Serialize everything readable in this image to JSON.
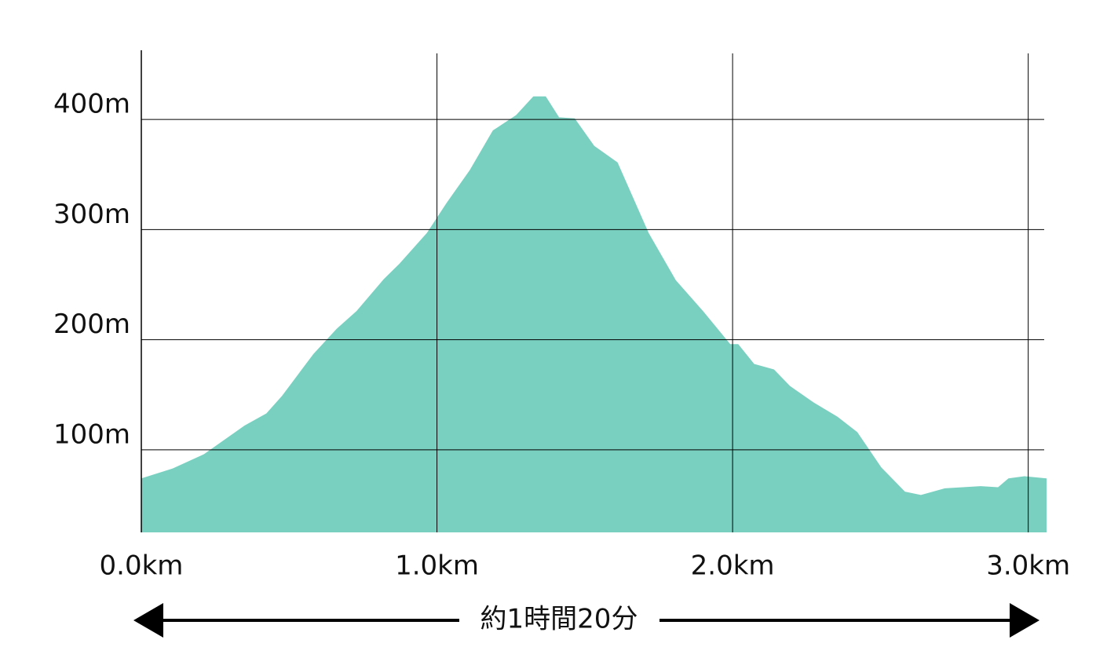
{
  "chart_data": {
    "type": "area",
    "x": [
      0,
      0.106,
      0.212,
      0.349,
      0.423,
      0.476,
      0.582,
      0.661,
      0.728,
      0.82,
      0.873,
      0.966,
      1.032,
      1.111,
      1.189,
      1.268,
      1.326,
      1.368,
      1.413,
      1.466,
      1.532,
      1.611,
      1.716,
      1.808,
      1.9,
      1.992,
      2.019,
      2.073,
      2.14,
      2.194,
      2.274,
      2.355,
      2.422,
      2.503,
      2.583,
      2.637,
      2.718,
      2.839,
      2.898,
      2.933,
      2.987,
      3.062
    ],
    "values": [
      74,
      83,
      96,
      122,
      133,
      149,
      187,
      210,
      226,
      255,
      269,
      297,
      324,
      354,
      390,
      404,
      421,
      421,
      402,
      401,
      376,
      361,
      297,
      254,
      226,
      196,
      196,
      178,
      173,
      158,
      143,
      130,
      116,
      84,
      62,
      59,
      65,
      67,
      66,
      74,
      76,
      74
    ],
    "color": "#79d0c0",
    "xlim": [
      0,
      3.062
    ],
    "xticks": [
      {
        "value": 0,
        "label": "0.0km"
      },
      {
        "value": 1,
        "label": "1.0km"
      },
      {
        "value": 2,
        "label": "2.0km"
      },
      {
        "value": 3,
        "label": "3.0km"
      }
    ],
    "ylim": [
      25,
      460
    ],
    "yticks": [
      {
        "value": 100,
        "label": "100m"
      },
      {
        "value": 200,
        "label": "200m"
      },
      {
        "value": 300,
        "label": "300m"
      },
      {
        "value": 400,
        "label": "400m"
      }
    ],
    "grid": true,
    "annotation": "約1時間20分"
  }
}
